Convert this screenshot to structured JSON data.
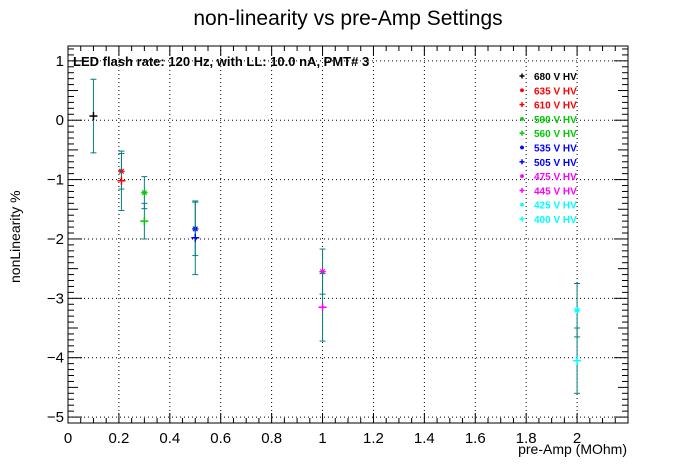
{
  "chart_data": {
    "type": "scatter",
    "title": "non-linearity vs pre-Amp Settings",
    "xlabel": "pre-Amp (MOhm)",
    "ylabel": "nonLinearity %",
    "annotation": "LED flash rate: 120 Hz, with LL: 10.0 nA, PMT# 3",
    "xlim": [
      0,
      2.2
    ],
    "ylim": [
      -5.1,
      1.25
    ],
    "grid": true,
    "legend_position": "top-right",
    "x_ticks": [
      "0",
      "0.2",
      "0.4",
      "0.6",
      "0.8",
      "1",
      "1.2",
      "1.4",
      "1.6",
      "1.8",
      "2"
    ],
    "x_tick_values": [
      0,
      0.2,
      0.4,
      0.6,
      0.8,
      1.0,
      1.2,
      1.4,
      1.6,
      1.8,
      2.0
    ],
    "y_ticks": [
      "1",
      "0",
      "−1",
      "−2",
      "−3",
      "−4",
      "−5"
    ],
    "y_tick_values": [
      1,
      0,
      -1,
      -2,
      -3,
      -4,
      -5
    ],
    "series": [
      {
        "name": "680 V HV",
        "color": "#000000",
        "marker": "plus",
        "x": 0.1,
        "y": 0.07,
        "err": 0.62,
        "err_color": "#008080"
      },
      {
        "name": "635 V HV",
        "color": "#ff0000",
        "marker": "star",
        "x": 0.21,
        "y": -0.86,
        "err": 0.3,
        "err_color": "#008080"
      },
      {
        "name": "610 V HV",
        "color": "#ff0000",
        "marker": "plus",
        "x": 0.21,
        "y": -1.02,
        "err": 0.5,
        "err_color": "#008080"
      },
      {
        "name": "590 V HV",
        "color": "#00cc00",
        "marker": "star",
        "x": 0.3,
        "y": -1.22,
        "err": 0.27,
        "err_color": "#008080"
      },
      {
        "name": "560 V HV",
        "color": "#00cc00",
        "marker": "plus",
        "x": 0.3,
        "y": -1.7,
        "err": 0.3,
        "err_color": "#008080"
      },
      {
        "name": "535 V HV",
        "color": "#0000ff",
        "marker": "star",
        "x": 0.5,
        "y": -1.83,
        "err": 0.45,
        "err_color": "#008080"
      },
      {
        "name": "505 V HV",
        "color": "#0000ff",
        "marker": "plus",
        "x": 0.5,
        "y": -1.98,
        "err": 0.62,
        "err_color": "#008080"
      },
      {
        "name": "475 V HV",
        "color": "#ff00ff",
        "marker": "star",
        "x": 1.0,
        "y": -2.55,
        "err": 0.38,
        "err_color": "#008080"
      },
      {
        "name": "445 V HV",
        "color": "#ff00ff",
        "marker": "plus",
        "x": 1.0,
        "y": -3.15,
        "err": 0.57,
        "err_color": "#008080"
      },
      {
        "name": "425 V HV",
        "color": "#00ffff",
        "marker": "star",
        "x": 2.0,
        "y": -3.2,
        "err": 0.45,
        "err_color": "#008080"
      },
      {
        "name": "400 V HV",
        "color": "#00ffff",
        "marker": "plus",
        "x": 2.0,
        "y": -4.05,
        "err": 0.55,
        "err_color": "#008080"
      }
    ]
  }
}
